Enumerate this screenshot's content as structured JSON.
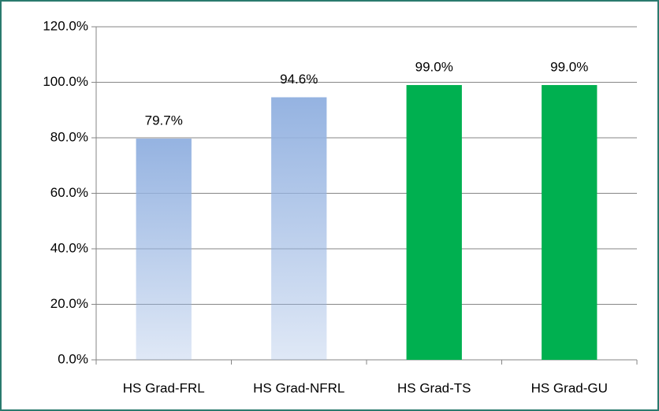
{
  "chart_data": {
    "type": "bar",
    "categories": [
      "HS Grad-FRL",
      "HS Grad-NFRL",
      "HS Grad-TS",
      "HS Grad-GU"
    ],
    "values": [
      79.7,
      94.6,
      99.0,
      99.0
    ],
    "value_labels": [
      "79.7%",
      "94.6%",
      "99.0%",
      "99.0%"
    ],
    "colors": [
      "#95b3e1",
      "#95b3e1",
      "#00b050",
      "#00b050"
    ],
    "fill_style": [
      "gradient",
      "gradient",
      "solid",
      "solid"
    ],
    "ylim": [
      0,
      120
    ],
    "yticks": [
      {
        "value": 0,
        "label": "0.0%"
      },
      {
        "value": 20,
        "label": "20.0%"
      },
      {
        "value": 40,
        "label": "40.0%"
      },
      {
        "value": 60,
        "label": "60.0%"
      },
      {
        "value": 80,
        "label": "80.0%"
      },
      {
        "value": 100,
        "label": "100.0%"
      },
      {
        "value": 120,
        "label": "120.0%"
      }
    ],
    "grid": true
  }
}
